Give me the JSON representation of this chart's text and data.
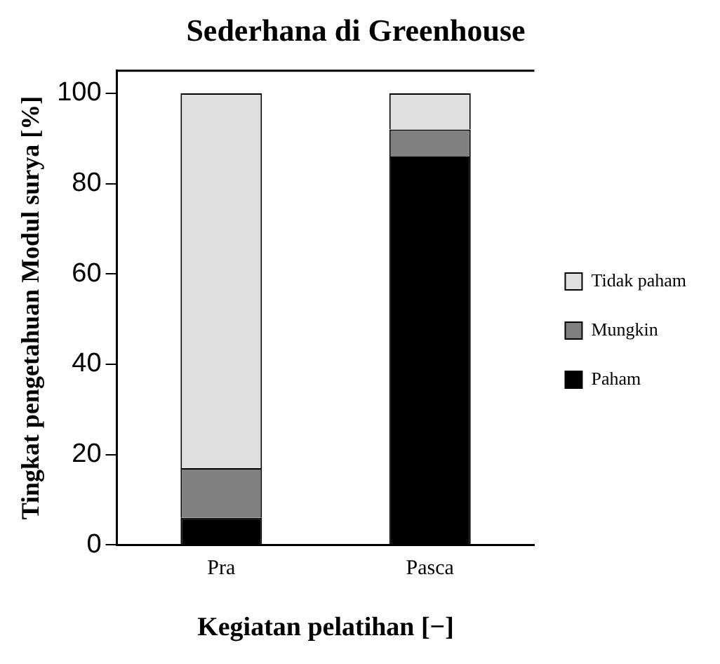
{
  "chart_data": {
    "type": "bar",
    "title": "Sederhana di Greenhouse",
    "xlabel": "Kegiatan pelatihan [−]",
    "ylabel": "Tingkat pengetahuan Modul surya [%]",
    "categories": [
      "Pra",
      "Pasca"
    ],
    "stacked": true,
    "series": [
      {
        "name": "Paham",
        "color": "#000000",
        "values": [
          6,
          86
        ]
      },
      {
        "name": "Mungkin",
        "color": "#808080",
        "values": [
          11,
          6
        ]
      },
      {
        "name": "Tidak paham",
        "color": "#e0e0e0",
        "values": [
          83,
          8
        ]
      }
    ],
    "ylim": [
      0,
      105
    ],
    "yticks": [
      0,
      20,
      40,
      60,
      80,
      100
    ],
    "grid": false,
    "legend": "right"
  }
}
